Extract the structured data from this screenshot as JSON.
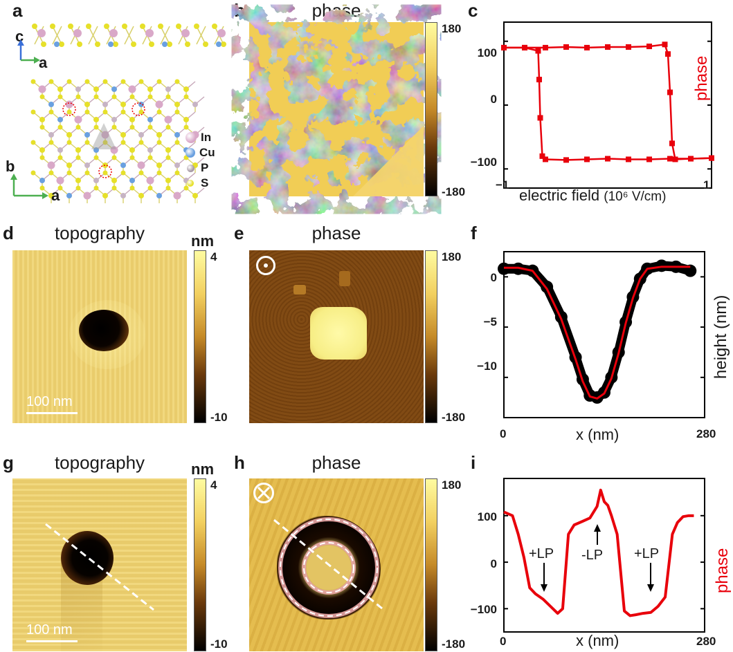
{
  "panels": {
    "a": {
      "label": "a",
      "axes_top": [
        "c",
        "a"
      ],
      "axes_bottom": [
        "b",
        "a"
      ],
      "legend": [
        "In",
        "Cu",
        "P",
        "S"
      ],
      "colors": {
        "In": "#d9a8c8",
        "Cu": "#6aa0e0",
        "P": "#c7b4c4",
        "S": "#e6e02a",
        "bond_yellow": "#d8d06a",
        "bond_pink": "#c6a7b8"
      }
    },
    "b": {
      "label": "b",
      "title": "phase",
      "cbar_max": "180",
      "cbar_min": "-180"
    },
    "c": {
      "label": "c",
      "xlabel": "electric field",
      "xunit": "(10⁶ V/cm)",
      "ylabel": "phase",
      "xticks": [
        "−1",
        "1"
      ],
      "yticks": [
        "100",
        "0",
        "−100"
      ]
    },
    "d": {
      "label": "d",
      "title": "topography",
      "unit": "nm",
      "cbar_max": "4",
      "cbar_min": "-10",
      "scalebar": "100 nm"
    },
    "e": {
      "label": "e",
      "title": "phase",
      "cbar_max": "180",
      "cbar_min": "-180",
      "symbol": "out-of-plane-dot"
    },
    "f": {
      "label": "f",
      "xlabel": "x (nm)",
      "ylabel": "height (nm)",
      "xticks": [
        "0",
        "280"
      ],
      "yticks": [
        "0",
        "−5",
        "−10"
      ]
    },
    "g": {
      "label": "g",
      "title": "topography",
      "unit": "nm",
      "cbar_max": "4",
      "cbar_min": "-10",
      "scalebar": "100 nm"
    },
    "h": {
      "label": "h",
      "title": "phase",
      "cbar_max": "180",
      "cbar_min": "-180",
      "symbol": "into-plane-cross"
    },
    "i": {
      "label": "i",
      "xlabel": "x (nm)",
      "ylabel": "phase",
      "xticks": [
        "0",
        "280"
      ],
      "yticks": [
        "100",
        "0",
        "−100"
      ],
      "annotations": [
        "+LP",
        "-LP",
        "+LP"
      ]
    }
  },
  "chart_data": [
    {
      "type": "line",
      "panel": "c",
      "xlabel": "electric field (10⁶ V/cm)",
      "ylabel": "phase",
      "xlim": [
        -1,
        1
      ],
      "ylim": [
        -130,
        130
      ],
      "color": "#e8000b",
      "series": [
        {
          "x": [
            -1.0,
            -0.8,
            -0.6,
            -0.4,
            -0.2,
            0.0,
            0.2,
            0.4,
            0.55,
            0.58,
            0.6,
            0.62,
            0.65,
            0.8,
            1.0
          ],
          "y": [
            90,
            90,
            90,
            91,
            90,
            91,
            91,
            92,
            95,
            80,
            20,
            -60,
            -85,
            -84,
            -83
          ]
        },
        {
          "x": [
            1.0,
            0.8,
            0.6,
            0.4,
            0.2,
            0.0,
            -0.2,
            -0.4,
            -0.6,
            -0.63,
            -0.65,
            -0.66,
            -0.67,
            -0.8,
            -1.0
          ],
          "y": [
            -83,
            -84,
            -84,
            -85,
            -85,
            -84,
            -85,
            -86,
            -85,
            -80,
            -20,
            40,
            85,
            90,
            90
          ]
        }
      ]
    },
    {
      "type": "line",
      "panel": "f",
      "xlabel": "x (nm)",
      "ylabel": "height (nm)",
      "xlim": [
        0,
        280
      ],
      "ylim": [
        -14,
        2.5
      ],
      "series": [
        {
          "name": "",
          "color": "#000000",
          "x": [
            0,
            20,
            40,
            60,
            80,
            100,
            110,
            120,
            130,
            140,
            150,
            160,
            170,
            180,
            190,
            200,
            220,
            240,
            260
          ],
          "y": [
            0.8,
            0.8,
            0.6,
            -1.0,
            -4.0,
            -8.0,
            -10.2,
            -11.8,
            -12.0,
            -11.5,
            -10.0,
            -7.5,
            -4.5,
            -2.0,
            -0.2,
            0.8,
            1.1,
            1.0,
            0.6
          ]
        },
        {
          "name": "",
          "color": "#e8000b",
          "x": [
            0,
            20,
            40,
            60,
            80,
            100,
            110,
            120,
            130,
            140,
            150,
            160,
            170,
            180,
            190,
            200,
            220,
            240,
            260
          ],
          "y": [
            0.9,
            0.9,
            0.6,
            -1.2,
            -4.2,
            -8.2,
            -10.4,
            -11.9,
            -12.1,
            -11.6,
            -10.1,
            -7.6,
            -4.6,
            -2.1,
            -0.2,
            0.8,
            1.0,
            1.0,
            1.0
          ]
        }
      ]
    },
    {
      "type": "line",
      "panel": "i",
      "xlabel": "x (nm)",
      "ylabel": "phase",
      "xlim": [
        0,
        280
      ],
      "ylim": [
        -150,
        180
      ],
      "color": "#e8000b",
      "series": [
        {
          "x": [
            0,
            12,
            20,
            28,
            36,
            44,
            55,
            65,
            75,
            82,
            90,
            98,
            110,
            120,
            130,
            135,
            140,
            145,
            150,
            158,
            168,
            176,
            184,
            194,
            205,
            215,
            225,
            235,
            242,
            250,
            258,
            265
          ],
          "y": [
            108,
            100,
            60,
            10,
            -55,
            -68,
            -80,
            -95,
            -110,
            -100,
            60,
            80,
            88,
            95,
            120,
            155,
            130,
            122,
            100,
            60,
            -105,
            -115,
            -113,
            -110,
            -108,
            -95,
            -75,
            60,
            85,
            98,
            100,
            100
          ]
        }
      ]
    }
  ]
}
